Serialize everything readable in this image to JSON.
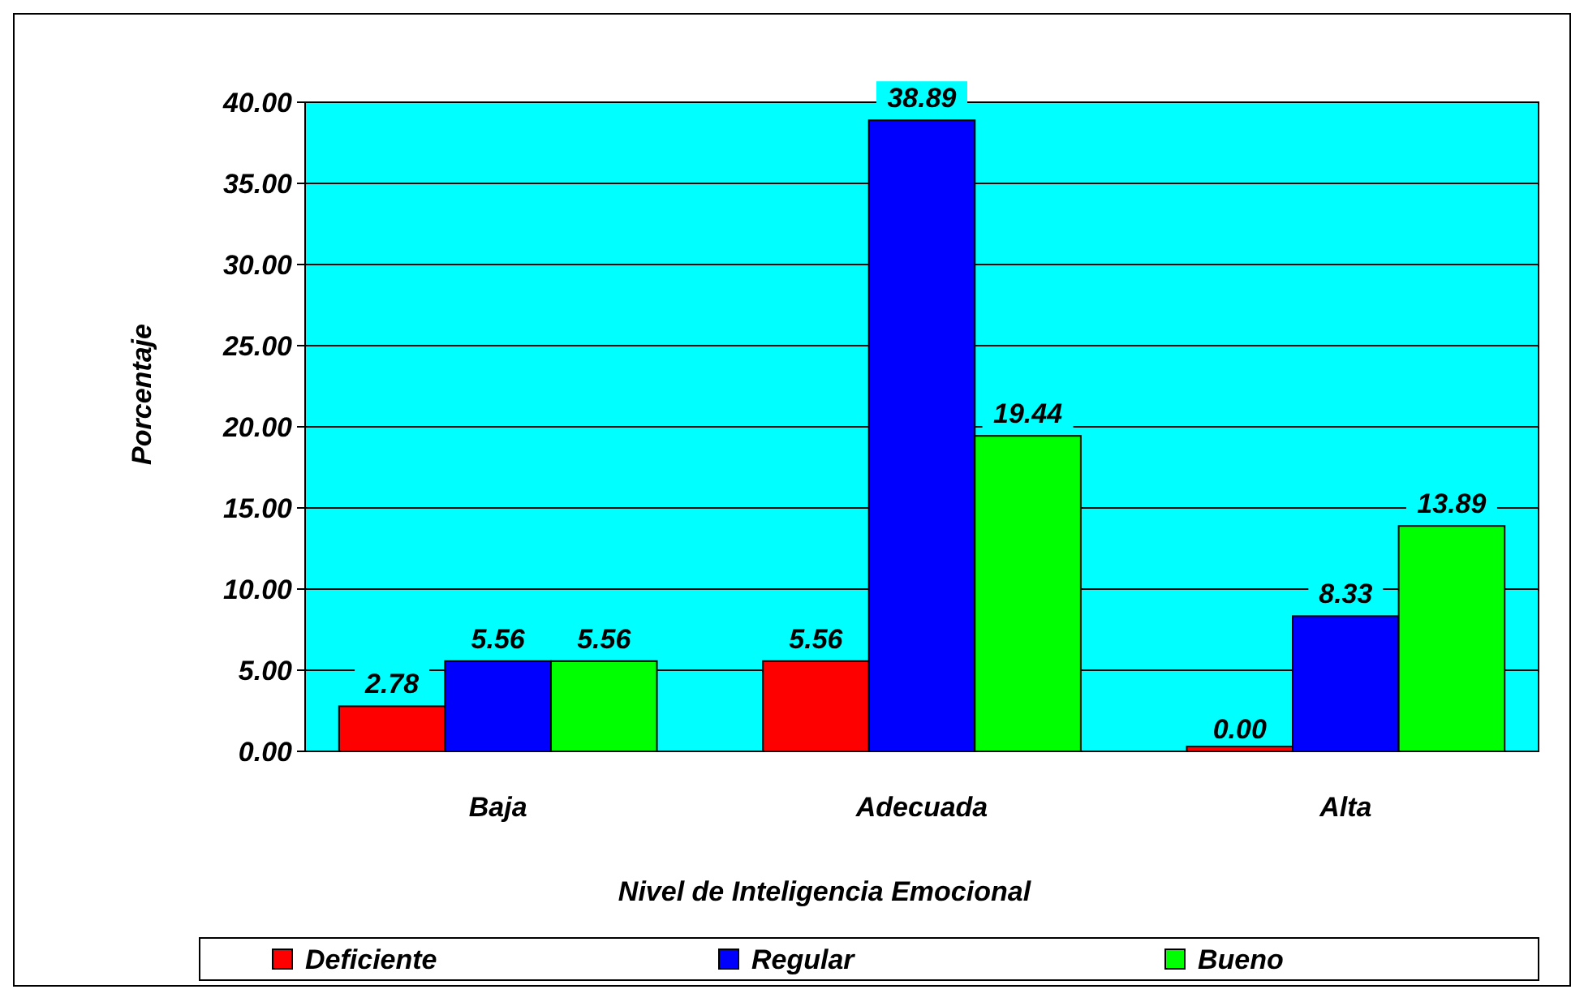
{
  "chart_data": {
    "type": "bar",
    "xlabel": "Nivel de Inteligencia Emocional",
    "ylabel": "Porcentaje",
    "categories": [
      "Baja",
      "Adecuada",
      "Alta"
    ],
    "series": [
      {
        "name": "Deficiente",
        "color": "#ff0000",
        "values": [
          2.78,
          5.56,
          0
        ],
        "value_labels": [
          "2.78",
          "5.56",
          "0.00"
        ]
      },
      {
        "name": "Regular",
        "color": "#0000ff",
        "values": [
          5.56,
          38.89,
          8.33
        ],
        "value_labels": [
          "5.56",
          "38.89",
          "8.33"
        ]
      },
      {
        "name": "Bueno",
        "color": "#00ff00",
        "values": [
          5.56,
          19.44,
          13.89
        ],
        "value_labels": [
          "5.56",
          "19.44",
          "13.89"
        ]
      }
    ],
    "ylim": [
      0,
      40
    ],
    "yticks": [
      {
        "value": 0,
        "label": "0.00"
      },
      {
        "value": 5,
        "label": "5.00"
      },
      {
        "value": 10,
        "label": "10.00"
      },
      {
        "value": 15,
        "label": "15.00"
      },
      {
        "value": 20,
        "label": "20.00"
      },
      {
        "value": 25,
        "label": "25.00"
      },
      {
        "value": 30,
        "label": "30.00"
      },
      {
        "value": 35,
        "label": "35.00"
      },
      {
        "value": 40,
        "label": "40.00"
      }
    ],
    "grid": "y",
    "legend": "bottom"
  }
}
